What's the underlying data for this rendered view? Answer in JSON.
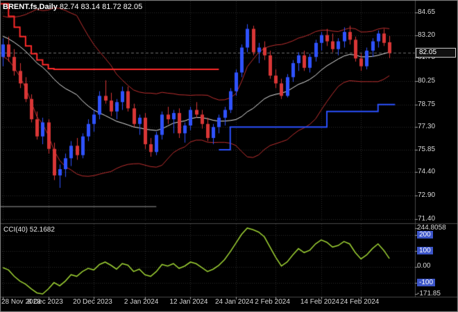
{
  "header": {
    "symbol": "BRENT.fs,Daily",
    "ohlc": "82.74 83.14 81.72 82.05"
  },
  "colors": {
    "background": "#000000",
    "grid": "#2e2e2e",
    "frame": "#4a4a4a",
    "border": "#8c8c8c",
    "axis_text": "#d9d9d9",
    "tick": "#9a9a9a",
    "bull": "#2f52ff",
    "bear": "#d93636",
    "band": "#c03030",
    "mid_line": "#e8e8e8",
    "red_step": "#ff2a2a",
    "blue_step": "#2b50ff",
    "cci_line": "#9acd32",
    "level_badge_bg": "#3c55c8",
    "current_price_bg": "#101010",
    "current_price_border": "#cccccc",
    "current_price_line": "#6f6f6f",
    "hline": "#4f4f4f"
  },
  "chart_data": {
    "type": "candlestick",
    "title": "BRENT.fs,Daily",
    "current_price": "82.05",
    "price_axis": {
      "labels": [
        "84.65",
        "83.20",
        "81.75",
        "80.25",
        "78.75",
        "77.30",
        "75.85",
        "74.40",
        "72.90",
        "71.40"
      ],
      "max": 85.45,
      "min": 71.22
    },
    "x_axis": {
      "labels": [
        "28 Nov 2023",
        "8 Dec 2023",
        "20 Dec 2023",
        "2 Jan 2024",
        "12 Jan 2024",
        "24 Jan 2024",
        "2 Feb 2024",
        "14 Feb 2024",
        "24 Feb 2024"
      ],
      "tick_indices": [
        0,
        8,
        16,
        25,
        33,
        41,
        48,
        56,
        63
      ]
    },
    "candles": [
      [
        81.8,
        83.0,
        81.2,
        82.6
      ],
      [
        82.6,
        83.1,
        81.5,
        81.8
      ],
      [
        81.8,
        82.3,
        80.6,
        80.9
      ],
      [
        80.9,
        81.4,
        79.8,
        80.1
      ],
      [
        80.1,
        80.5,
        78.9,
        79.1
      ],
      [
        79.1,
        79.4,
        77.6,
        77.8
      ],
      [
        77.8,
        78.3,
        76.5,
        76.7
      ],
      [
        76.7,
        77.9,
        76.2,
        77.6
      ],
      [
        77.6,
        77.8,
        75.6,
        75.9
      ],
      [
        75.9,
        76.3,
        73.9,
        74.2
      ],
      [
        74.2,
        74.9,
        73.4,
        74.6
      ],
      [
        74.6,
        75.6,
        74.1,
        75.3
      ],
      [
        75.3,
        76.4,
        74.8,
        76.1
      ],
      [
        76.1,
        76.6,
        75.2,
        75.5
      ],
      [
        75.5,
        76.9,
        75.3,
        76.7
      ],
      [
        76.7,
        77.8,
        76.4,
        77.5
      ],
      [
        77.5,
        78.4,
        77.0,
        78.1
      ],
      [
        78.1,
        79.6,
        77.8,
        79.3
      ],
      [
        79.3,
        80.3,
        78.8,
        79.0
      ],
      [
        79.0,
        79.5,
        78.0,
        78.3
      ],
      [
        78.3,
        79.1,
        77.8,
        78.9
      ],
      [
        78.9,
        79.9,
        78.4,
        79.6
      ],
      [
        79.6,
        79.9,
        78.3,
        78.5
      ],
      [
        78.5,
        78.8,
        77.3,
        77.5
      ],
      [
        77.5,
        78.1,
        76.8,
        77.9
      ],
      [
        77.9,
        78.2,
        75.9,
        76.2
      ],
      [
        76.2,
        76.6,
        75.4,
        75.7
      ],
      [
        75.7,
        77.0,
        75.5,
        76.8
      ],
      [
        76.8,
        78.3,
        76.5,
        78.1
      ],
      [
        78.1,
        78.6,
        77.5,
        77.8
      ],
      [
        77.8,
        78.4,
        76.9,
        78.2
      ],
      [
        78.2,
        78.5,
        76.6,
        76.9
      ],
      [
        76.9,
        77.6,
        76.3,
        77.4
      ],
      [
        77.4,
        78.6,
        77.1,
        78.4
      ],
      [
        78.4,
        78.9,
        77.9,
        78.1
      ],
      [
        78.1,
        78.4,
        77.2,
        77.5
      ],
      [
        77.5,
        77.9,
        76.4,
        76.6
      ],
      [
        76.6,
        77.5,
        76.2,
        77.3
      ],
      [
        77.3,
        78.1,
        76.9,
        77.9
      ],
      [
        77.9,
        78.6,
        77.4,
        78.4
      ],
      [
        78.4,
        79.8,
        78.2,
        79.6
      ],
      [
        79.6,
        81.0,
        79.3,
        80.8
      ],
      [
        80.8,
        82.6,
        80.5,
        82.4
      ],
      [
        82.4,
        83.9,
        82.1,
        83.6
      ],
      [
        83.6,
        83.8,
        81.9,
        82.1
      ],
      [
        82.1,
        82.7,
        81.4,
        82.4
      ],
      [
        82.4,
        82.8,
        81.6,
        81.9
      ],
      [
        81.9,
        82.2,
        80.4,
        80.6
      ],
      [
        80.6,
        81.0,
        79.8,
        80.1
      ],
      [
        80.1,
        80.4,
        79.1,
        79.3
      ],
      [
        79.3,
        80.7,
        79.2,
        80.5
      ],
      [
        80.5,
        81.6,
        80.2,
        81.4
      ],
      [
        81.4,
        82.1,
        80.9,
        81.9
      ],
      [
        81.9,
        82.2,
        80.9,
        81.1
      ],
      [
        81.1,
        82.0,
        80.8,
        81.8
      ],
      [
        81.8,
        82.9,
        81.5,
        82.7
      ],
      [
        82.7,
        83.4,
        82.2,
        83.2
      ],
      [
        83.2,
        83.6,
        82.5,
        82.8
      ],
      [
        82.8,
        83.3,
        82.1,
        82.3
      ],
      [
        82.3,
        83.0,
        81.9,
        82.8
      ],
      [
        82.8,
        83.7,
        82.4,
        83.4
      ],
      [
        83.4,
        83.8,
        82.6,
        82.9
      ],
      [
        82.9,
        83.1,
        81.5,
        81.7
      ],
      [
        81.7,
        82.0,
        80.9,
        81.2
      ],
      [
        81.2,
        82.4,
        81.0,
        82.2
      ],
      [
        82.2,
        83.0,
        81.8,
        82.8
      ],
      [
        82.8,
        83.5,
        82.4,
        83.3
      ],
      [
        83.3,
        83.6,
        82.5,
        82.7
      ],
      [
        82.74,
        83.14,
        81.72,
        82.05
      ]
    ],
    "overlays": {
      "bollinger": {
        "period": 20,
        "deviation": 1.5,
        "min_half_width": 1.0,
        "warmup_closes": [
          84.6,
          84.0,
          83.4,
          82.9,
          82.4,
          82.0
        ]
      },
      "red_step": [
        [
          0,
          85.2
        ],
        [
          1,
          84.4
        ],
        [
          2,
          83.7
        ],
        [
          3,
          83.1
        ],
        [
          4,
          82.5
        ],
        [
          5,
          82.0
        ],
        [
          6,
          81.6
        ],
        [
          7,
          81.3
        ],
        [
          8,
          81.05
        ],
        [
          9,
          81.0
        ],
        [
          38,
          81.0
        ]
      ],
      "blue_step": [
        [
          38,
          75.85
        ],
        [
          40,
          75.85
        ],
        [
          40,
          77.3
        ],
        [
          57,
          77.3
        ],
        [
          57,
          78.3
        ],
        [
          66,
          78.3
        ],
        [
          66,
          78.75
        ],
        [
          69,
          78.75
        ]
      ],
      "hline": {
        "value": 72.2,
        "from_index": 0,
        "to_index": 27
      }
    },
    "indicator": {
      "name": "CCI(40)",
      "label": "CCI(40) 52.1682",
      "values": [
        -5,
        -20,
        -60,
        -90,
        -110,
        -140,
        -165,
        -171.85,
        -140,
        -100,
        -120,
        -90,
        -50,
        -60,
        -30,
        -10,
        -20,
        15,
        30,
        10,
        -15,
        20,
        10,
        -30,
        -15,
        -50,
        -60,
        -30,
        15,
        5,
        20,
        -10,
        5,
        30,
        20,
        -5,
        -30,
        -15,
        10,
        45,
        95,
        150,
        205,
        244.8058,
        235,
        220,
        190,
        125,
        60,
        5,
        30,
        75,
        115,
        90,
        105,
        145,
        170,
        155,
        125,
        135,
        160,
        145,
        90,
        50,
        75,
        115,
        145,
        105,
        52.1682
      ],
      "axis": {
        "max_label": "244.8058",
        "min_label": "-171.85",
        "max": 244.8058,
        "min": -171.85,
        "levels": [
          {
            "text": "200",
            "value": 200,
            "badge": true
          },
          {
            "text": "100",
            "value": 100,
            "badge": true
          },
          {
            "text": "0.00",
            "value": 0,
            "badge": false
          },
          {
            "text": "-100",
            "value": -100,
            "badge": true
          }
        ]
      }
    }
  }
}
